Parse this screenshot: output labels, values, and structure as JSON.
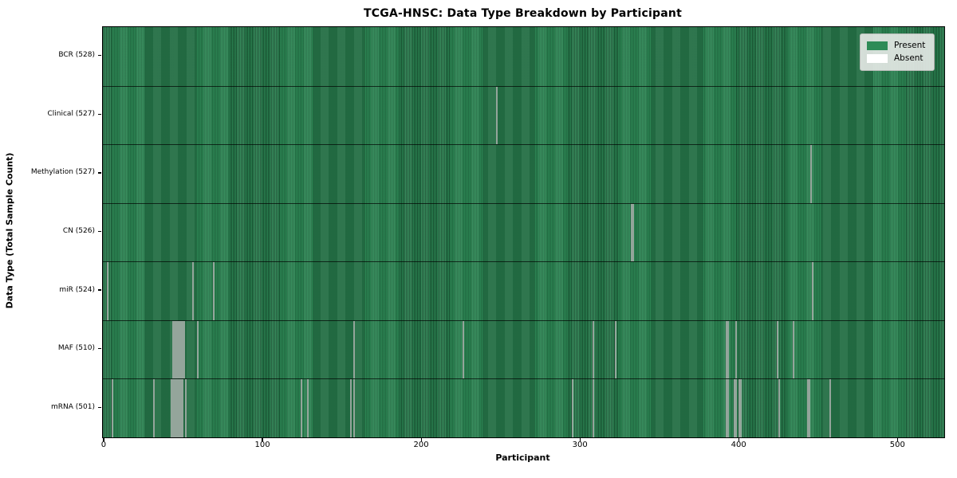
{
  "title": "TCGA-HNSC: Data Type Breakdown by Participant",
  "x_axis_label": "Participant",
  "y_axis_label": "Data Type (Total Sample Count)",
  "legend": {
    "items": [
      {
        "label": "Present",
        "color": "#2e8b57"
      },
      {
        "label": "Absent",
        "color": "#ffffff"
      }
    ]
  },
  "colors": {
    "present": "#2e8b57",
    "absent": "#ffffff",
    "bar_edge": "#143d24",
    "axis_frame": "#000000",
    "legend_bg": "#e8eae8",
    "legend_border": "#b9bdb9"
  },
  "chart_data": {
    "type": "heatmap",
    "title": "TCGA-HNSC: Data Type Breakdown by Participant",
    "xlabel": "Participant",
    "ylabel": "Data Type (Total Sample Count)",
    "legend_entries": [
      "Present",
      "Absent"
    ],
    "legend_position": "upper right",
    "grid": false,
    "n_participants": 528,
    "x_ticks": [
      0,
      100,
      200,
      300,
      400,
      500
    ],
    "xlim": [
      -1,
      529
    ],
    "rows": [
      {
        "label": "BCR (528)",
        "data_type": "BCR",
        "present_count": 528,
        "absent_participants": []
      },
      {
        "label": "Clinical (527)",
        "data_type": "Clinical",
        "present_count": 527,
        "absent_participants": [
          247
        ]
      },
      {
        "label": "Methylation (527)",
        "data_type": "Methylation",
        "present_count": 527,
        "absent_participants": [
          445
        ]
      },
      {
        "label": "CN (526)",
        "data_type": "CN",
        "present_count": 526,
        "absent_participants": [
          332,
          333
        ]
      },
      {
        "label": "miR (524)",
        "data_type": "miR",
        "present_count": 524,
        "absent_participants": [
          2,
          56,
          69,
          446
        ]
      },
      {
        "label": "MAF (510)",
        "data_type": "MAF",
        "present_count": 510,
        "absent_participants": [
          43,
          44,
          45,
          46,
          47,
          48,
          49,
          50,
          59,
          157,
          226,
          308,
          322,
          392,
          393,
          398,
          424,
          434
        ]
      },
      {
        "label": "mRNA (501)",
        "data_type": "mRNA",
        "present_count": 501,
        "absent_participants": [
          5,
          31,
          42,
          43,
          44,
          45,
          46,
          47,
          48,
          49,
          51,
          124,
          128,
          155,
          157,
          295,
          308,
          392,
          393,
          397,
          398,
          400,
          401,
          425,
          443,
          444,
          457
        ]
      }
    ]
  }
}
